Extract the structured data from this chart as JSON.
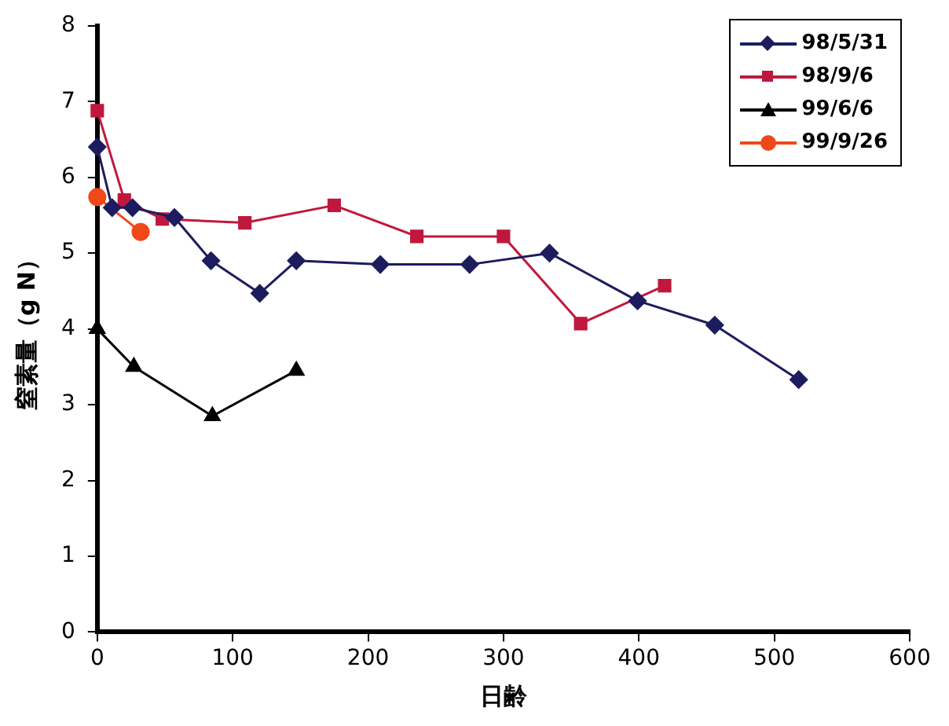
{
  "chart_data": {
    "type": "line",
    "xlabel": "日齢",
    "ylabel": "窒素量（g N）",
    "xlim": [
      0,
      600
    ],
    "xticks": [
      0,
      100,
      200,
      300,
      400,
      500,
      600
    ],
    "ylim": [
      0,
      8
    ],
    "yticks": [
      0,
      1,
      2,
      3,
      4,
      5,
      6,
      7,
      8
    ],
    "grid": false,
    "legend": "top right",
    "line_style": "solid",
    "series": [
      {
        "name": "98/5/31",
        "color": "#1c1c5e",
        "marker": "diamond",
        "x": [
          0,
          11,
          26,
          57,
          84,
          120,
          147,
          209,
          275,
          334,
          399,
          456,
          518
        ],
        "values": [
          6.4,
          5.6,
          5.6,
          5.47,
          4.9,
          4.47,
          4.9,
          4.85,
          4.85,
          5.0,
          4.37,
          4.05,
          3.33
        ]
      },
      {
        "name": "98/9/6",
        "color": "#c0183c",
        "marker": "square",
        "x": [
          0,
          20,
          48,
          109,
          175,
          236,
          300,
          357,
          419
        ],
        "values": [
          6.88,
          5.7,
          5.45,
          5.4,
          5.63,
          5.22,
          5.22,
          4.07,
          4.57
        ]
      },
      {
        "name": "99/6/6",
        "color": "#000000",
        "marker": "triangle",
        "x": [
          0,
          27,
          85,
          147
        ],
        "values": [
          4.0,
          3.5,
          2.85,
          3.45
        ]
      },
      {
        "name": "99/9/26",
        "color": "#f04818",
        "marker": "circle",
        "x": [
          0,
          14,
          32
        ],
        "values": [
          5.74,
          null,
          5.28
        ]
      }
    ]
  }
}
